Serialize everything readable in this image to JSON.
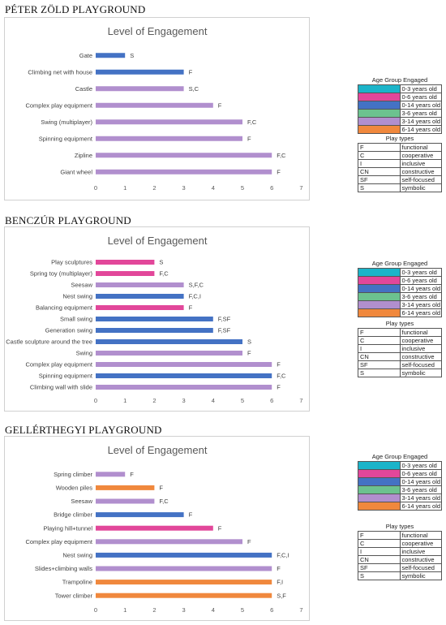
{
  "sections": [
    {
      "title": "PÉTER ZÖLD PLAYGROUND",
      "chart": {
        "type": "bar",
        "orientation": "horizontal",
        "title": "Level of Engagement",
        "xlim": [
          0,
          7
        ],
        "xticks": [
          "0",
          "1",
          "2",
          "3",
          "4",
          "5",
          "6",
          "7"
        ],
        "grid": false,
        "legend": "none",
        "categories": [
          "Gate",
          "Climbing net with house",
          "Castle",
          "Complex play equipment",
          "Swing (multiplayer)",
          "Spinning equipment",
          "Zipline",
          "Giant wheel"
        ],
        "values": [
          1,
          3,
          3,
          4,
          5,
          5,
          6,
          6
        ],
        "labels": [
          "S",
          "F",
          "S,C",
          "F",
          "F,C",
          "F",
          "F,C",
          "F"
        ],
        "colors": [
          "#4472c4",
          "#4472c4",
          "#b18fce",
          "#b18fce",
          "#b18fce",
          "#b18fce",
          "#b18fce",
          "#b18fce"
        ]
      }
    },
    {
      "title": "BENCZÚR PLAYGROUND",
      "chart": {
        "type": "bar",
        "orientation": "horizontal",
        "title": "Level of Engagement",
        "xlim": [
          0,
          7
        ],
        "xticks": [
          "0",
          "1",
          "2",
          "3",
          "4",
          "5",
          "6",
          "7"
        ],
        "grid": false,
        "legend": "none",
        "categories": [
          "Play sculptures",
          "Spring toy (multiplayer)",
          "Seesaw",
          "Nest swing",
          "Balancing equipment",
          "Small swing",
          "Generation swing",
          "Castle sculpture around the tree",
          "Swing",
          "Complex play equipment",
          "Spinning equipment",
          "Climbing wall with slide"
        ],
        "values": [
          2,
          2,
          3,
          3,
          3,
          4,
          4,
          5,
          5,
          6,
          6,
          6
        ],
        "labels": [
          "S",
          "F,C",
          "S,F,C",
          "F,C,I",
          "F",
          "F,SF",
          "F,SF",
          "S",
          "F",
          "F",
          "F,C",
          "F"
        ],
        "colors": [
          "#e2479a",
          "#e2479a",
          "#b18fce",
          "#4472c4",
          "#e2479a",
          "#4472c4",
          "#4472c4",
          "#4472c4",
          "#b18fce",
          "#b18fce",
          "#4472c4",
          "#b18fce"
        ]
      }
    },
    {
      "title": "GELLÉRTHEGYI PLAYGROUND",
      "chart": {
        "type": "bar",
        "orientation": "horizontal",
        "title": "Level of Engagement",
        "xlim": [
          0,
          7
        ],
        "xticks": [
          "0",
          "1",
          "2",
          "3",
          "4",
          "5",
          "6",
          "7"
        ],
        "grid": false,
        "legend": "none",
        "categories": [
          "Spring climber",
          "Wooden piles",
          "Seesaw",
          "Bridge climber",
          "Playing hill+tunnel",
          "Complex play equipment",
          "Nest swing",
          "Slides+climbing walls",
          "Trampoline",
          "Tower climber"
        ],
        "values": [
          1,
          2,
          2,
          3,
          4,
          5,
          6,
          6,
          6,
          6
        ],
        "labels": [
          "F",
          "F",
          "F,C",
          "F",
          "F",
          "F",
          "F,C,I",
          "F",
          "F,I",
          "S,F"
        ],
        "colors": [
          "#b18fce",
          "#f0883d",
          "#b18fce",
          "#4472c4",
          "#e2479a",
          "#b18fce",
          "#4472c4",
          "#b18fce",
          "#f0883d",
          "#f0883d"
        ]
      }
    }
  ],
  "legend": {
    "age_title": "Age Group Engaged",
    "age_groups": [
      {
        "label": "0-3 years old",
        "color": "#1cb4c9"
      },
      {
        "label": "0-6 years old",
        "color": "#e2479a"
      },
      {
        "label": "0-14 years old",
        "color": "#4472c4"
      },
      {
        "label": "3-6 years old",
        "color": "#6cc28f"
      },
      {
        "label": "3-14 years old",
        "color": "#b18fce"
      },
      {
        "label": "6-14 years old",
        "color": "#f0883d"
      }
    ],
    "play_title": "Play types",
    "play_types": [
      {
        "code": "F",
        "label": "functional"
      },
      {
        "code": "C",
        "label": "cooperative"
      },
      {
        "code": "I",
        "label": "inclusive"
      },
      {
        "code": "CN",
        "label": "constructive"
      },
      {
        "code": "SF",
        "label": "self-focused"
      },
      {
        "code": "S",
        "label": "symbolic"
      }
    ]
  }
}
